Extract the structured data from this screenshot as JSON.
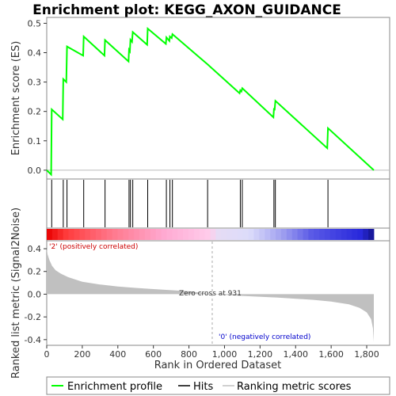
{
  "chart_data": {
    "type": "line",
    "title": "Enrichment plot: KEGG_AXON_GUIDANCE",
    "n_genes": 1840,
    "panels": {
      "enrichment": {
        "ylabel": "Enrichment score (ES)",
        "ylim": [
          -0.03,
          0.52
        ],
        "yticks": [
          0.0,
          0.1,
          0.2,
          0.3,
          0.4,
          0.5
        ],
        "ytick_labels": [
          "0.0",
          "0.1",
          "0.2",
          "0.3",
          "0.4",
          "0.5"
        ],
        "color": "#00ff00",
        "points": [
          [
            0,
            0.0
          ],
          [
            25,
            -0.015
          ],
          [
            28,
            0.207
          ],
          [
            90,
            0.173
          ],
          [
            93,
            0.31
          ],
          [
            110,
            0.3
          ],
          [
            114,
            0.421
          ],
          [
            205,
            0.39
          ],
          [
            208,
            0.455
          ],
          [
            325,
            0.39
          ],
          [
            328,
            0.443
          ],
          [
            460,
            0.37
          ],
          [
            463,
            0.41
          ],
          [
            468,
            0.405
          ],
          [
            471,
            0.444
          ],
          [
            480,
            0.437
          ],
          [
            484,
            0.47
          ],
          [
            565,
            0.427
          ],
          [
            568,
            0.482
          ],
          [
            670,
            0.43
          ],
          [
            673,
            0.452
          ],
          [
            690,
            0.44
          ],
          [
            693,
            0.455
          ],
          [
            703,
            0.45
          ],
          [
            707,
            0.463
          ],
          [
            905,
            0.36
          ],
          [
            1085,
            0.262
          ],
          [
            1089,
            0.272
          ],
          [
            1095,
            0.268
          ],
          [
            1100,
            0.279
          ],
          [
            1275,
            0.18
          ],
          [
            1278,
            0.208
          ],
          [
            1282,
            0.207
          ],
          [
            1286,
            0.236
          ],
          [
            1578,
            0.075
          ],
          [
            1582,
            0.143
          ],
          [
            1840,
            0.0
          ]
        ]
      },
      "hits": {
        "positions": [
          28,
          93,
          114,
          208,
          328,
          463,
          471,
          484,
          568,
          673,
          693,
          707,
          905,
          1089,
          1100,
          1278,
          1286,
          1582
        ]
      },
      "ranking": {
        "ylabel": "Ranked list metric (Signal2Noise)",
        "xlabel": "Rank in Ordered Dataset",
        "ylim": [
          -0.45,
          0.47
        ],
        "yticks": [
          -0.4,
          -0.2,
          0.0,
          0.2,
          0.4
        ],
        "ytick_labels": [
          "-0.4",
          "-0.2",
          "0.0",
          "0.2",
          "0.4"
        ],
        "xticks": [
          0,
          200,
          400,
          600,
          800,
          1000,
          1200,
          1400,
          1600,
          1800
        ],
        "xtick_labels": [
          "0",
          "200",
          "400",
          "600",
          "800",
          "1,000",
          "1,200",
          "1,400",
          "1,600",
          "1,800"
        ],
        "zero_cross": 931,
        "zero_cross_label": "Zero cross at 931",
        "positive_label": "'2' (positively correlated)",
        "negative_label": "'0' (negatively correlated)",
        "profile": [
          [
            0,
            0.4
          ],
          [
            5,
            0.35
          ],
          [
            15,
            0.3
          ],
          [
            30,
            0.25
          ],
          [
            50,
            0.21
          ],
          [
            80,
            0.18
          ],
          [
            120,
            0.15
          ],
          [
            200,
            0.11
          ],
          [
            300,
            0.085
          ],
          [
            400,
            0.068
          ],
          [
            500,
            0.055
          ],
          [
            600,
            0.045
          ],
          [
            700,
            0.035
          ],
          [
            800,
            0.025
          ],
          [
            931,
            0.0
          ],
          [
            1100,
            -0.015
          ],
          [
            1300,
            -0.03
          ],
          [
            1500,
            -0.05
          ],
          [
            1600,
            -0.065
          ],
          [
            1700,
            -0.09
          ],
          [
            1760,
            -0.12
          ],
          [
            1800,
            -0.16
          ],
          [
            1825,
            -0.22
          ],
          [
            1835,
            -0.3
          ],
          [
            1840,
            -0.42
          ]
        ]
      }
    },
    "legend": {
      "placement": "bottom",
      "entries": [
        {
          "label": "Enrichment profile",
          "color": "#00ff00",
          "style": "line"
        },
        {
          "label": "Hits",
          "color": "#000000",
          "style": "line"
        },
        {
          "label": "Ranking metric scores",
          "color": "#c0c0c0",
          "style": "line"
        }
      ]
    }
  }
}
